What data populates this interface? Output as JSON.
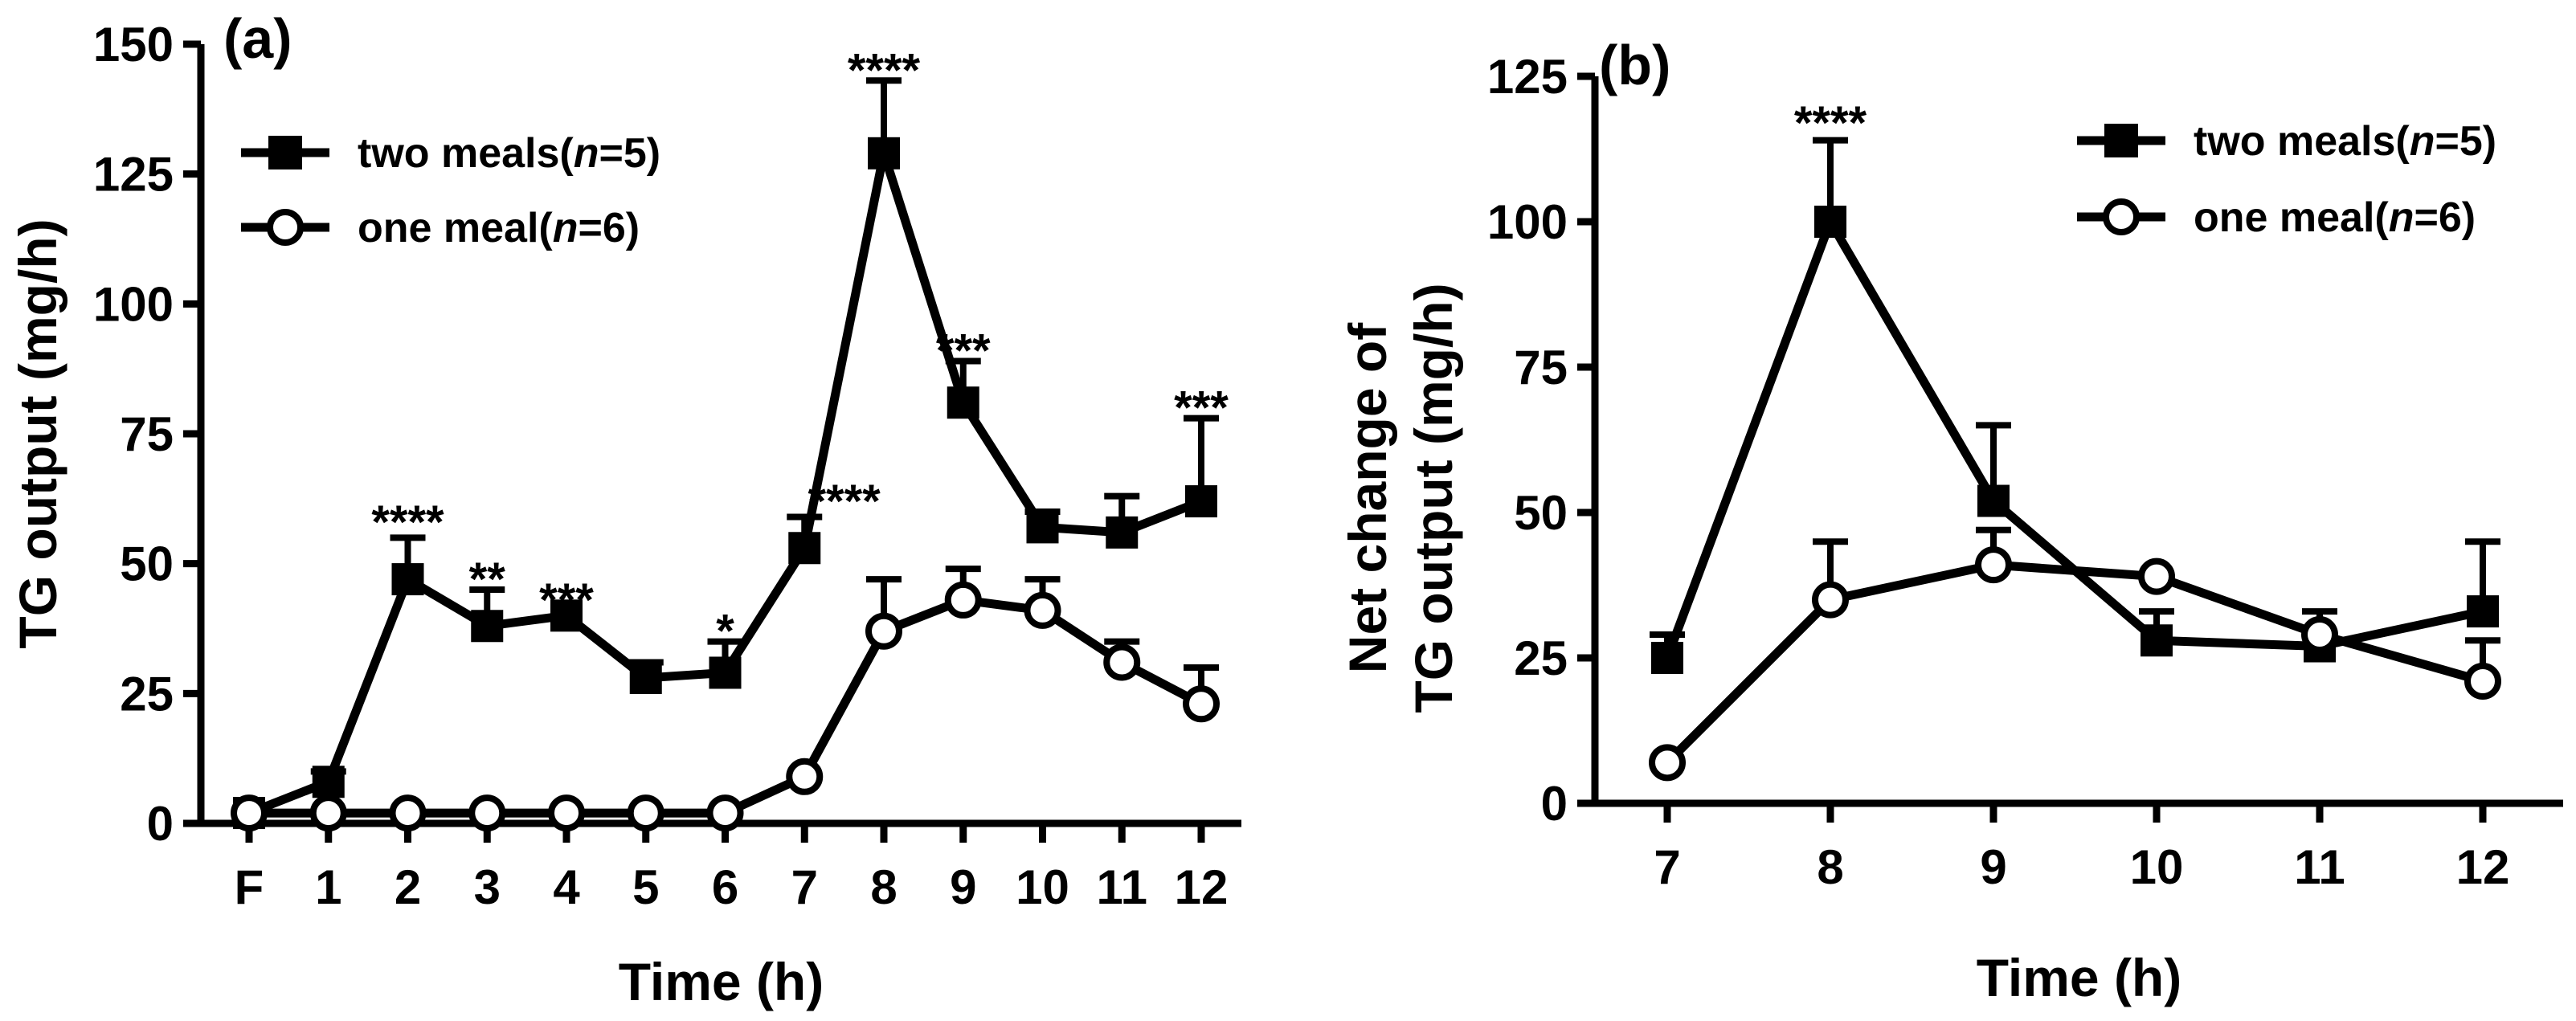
{
  "chart_data": [
    {
      "id": "a",
      "type": "line",
      "panel_label": "(a)",
      "xlabel": "Time (h)",
      "ylabel": "TG output (mg/h)",
      "categories": [
        "F",
        "1",
        "2",
        "3",
        "4",
        "5",
        "6",
        "7",
        "8",
        "9",
        "10",
        "11",
        "12"
      ],
      "ylim": [
        0,
        150
      ],
      "yticks": [
        0,
        25,
        50,
        75,
        100,
        125,
        150
      ],
      "series": [
        {
          "name": "two meals",
          "legend": {
            "prefix": "two meals(",
            "italic": "n",
            "suffix": "=5)"
          },
          "marker": "filled-square",
          "values": [
            2,
            8,
            47,
            38,
            40,
            28,
            29,
            53,
            129,
            81,
            57,
            56,
            62
          ],
          "errors": [
            0,
            2,
            8,
            7,
            0,
            3,
            6,
            6,
            14,
            8,
            3,
            7,
            16
          ]
        },
        {
          "name": "one meal",
          "legend": {
            "prefix": "one meal(",
            "italic": "n",
            "suffix": "=6)"
          },
          "marker": "open-circle",
          "values": [
            2,
            2,
            2,
            2,
            2,
            2,
            2,
            9,
            37,
            43,
            41,
            31,
            23
          ],
          "errors": [
            0,
            0,
            0,
            0,
            0,
            0,
            0,
            0,
            10,
            6,
            6,
            4,
            7
          ]
        }
      ],
      "annotations": [
        {
          "index": 2,
          "text": "****",
          "y": 58
        },
        {
          "index": 3,
          "text": "**",
          "y": 47
        },
        {
          "index": 4,
          "text": "***",
          "y": 43
        },
        {
          "index": 6,
          "text": "*",
          "y": 37
        },
        {
          "index": 7.5,
          "text": "****",
          "y": 62
        },
        {
          "index": 8,
          "text": "****",
          "y": 145
        },
        {
          "index": 9,
          "text": "***",
          "y": 91
        },
        {
          "index": 12,
          "text": "***",
          "y": 80
        }
      ]
    },
    {
      "id": "b",
      "type": "line",
      "panel_label": "(b)",
      "xlabel": "Time (h)",
      "ylabel": "Net change of TG output (mg/h)",
      "ylabel_lines": [
        "Net change of",
        "TG output (mg/h)"
      ],
      "categories": [
        "7",
        "8",
        "9",
        "10",
        "11",
        "12"
      ],
      "ylim": [
        0,
        125
      ],
      "yticks": [
        0,
        25,
        50,
        75,
        100,
        125
      ],
      "series": [
        {
          "name": "two meals",
          "legend": {
            "prefix": "two meals(",
            "italic": "n",
            "suffix": "=5)"
          },
          "marker": "filled-square",
          "values": [
            25,
            100,
            52,
            28,
            27,
            33
          ],
          "errors": [
            4,
            14,
            13,
            5,
            6,
            12
          ]
        },
        {
          "name": "one meal",
          "legend": {
            "prefix": "one meal(",
            "italic": "n",
            "suffix": "=6)"
          },
          "marker": "open-circle",
          "values": [
            7,
            35,
            41,
            39,
            29,
            21
          ],
          "errors": [
            0,
            10,
            6,
            0,
            0,
            7
          ]
        }
      ],
      "annotations": [
        {
          "index": 1,
          "text": "****",
          "y": 117
        }
      ]
    }
  ]
}
